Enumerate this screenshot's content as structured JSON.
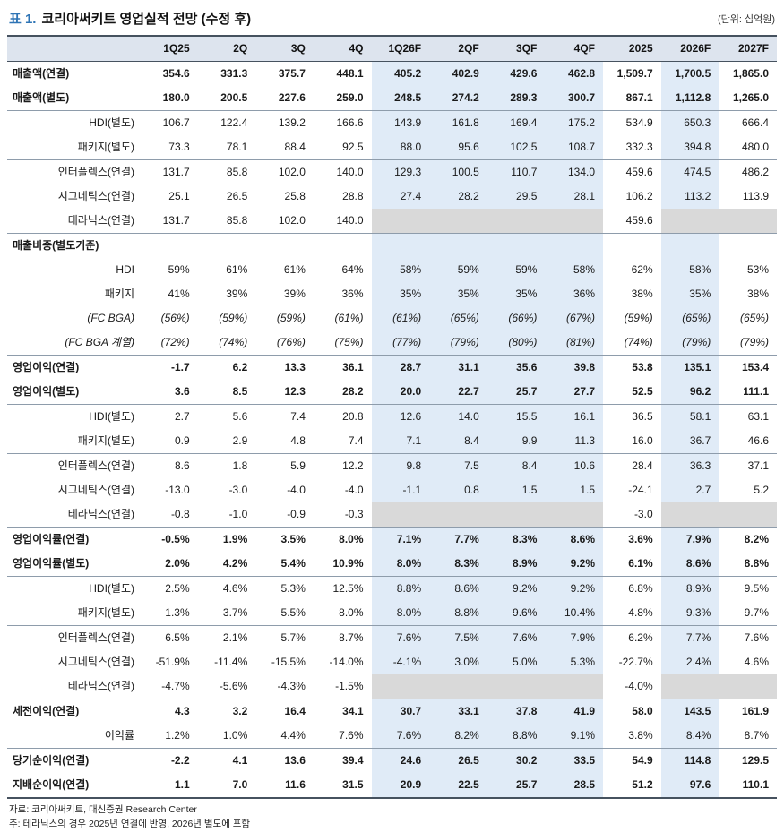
{
  "header": {
    "table_label": "표 1.",
    "title": "코리아써키트 영업실적 전망 (수정 후)",
    "unit": "(단위: 십억원)"
  },
  "colors": {
    "accent_blue": "#2e74b5",
    "header_bg": "#dde4ee",
    "forecast_bg": "#e0ebf7",
    "empty_cell_bg": "#d9d9d9",
    "rule_dark": "#46525f",
    "rule_light": "#8e9cab"
  },
  "table": {
    "columns": [
      "1Q25",
      "2Q",
      "3Q",
      "4Q",
      "1Q26F",
      "2QF",
      "3QF",
      "4QF",
      "2025",
      "2026F",
      "2027F"
    ],
    "highlight_columns": [
      4,
      5,
      6,
      7,
      9
    ],
    "rows": [
      {
        "label": "매출액(연결)",
        "style": "bold",
        "values": [
          "354.6",
          "331.3",
          "375.7",
          "448.1",
          "405.2",
          "402.9",
          "429.6",
          "462.8",
          "1,509.7",
          "1,700.5",
          "1,865.0"
        ]
      },
      {
        "label": "매출액(별도)",
        "style": "bold",
        "values": [
          "180.0",
          "200.5",
          "227.6",
          "259.0",
          "248.5",
          "274.2",
          "289.3",
          "300.7",
          "867.1",
          "1,112.8",
          "1,265.0"
        ]
      },
      {
        "label": "HDI(별도)",
        "style": "sub",
        "sep": true,
        "values": [
          "106.7",
          "122.4",
          "139.2",
          "166.6",
          "143.9",
          "161.8",
          "169.4",
          "175.2",
          "534.9",
          "650.3",
          "666.4"
        ]
      },
      {
        "label": "패키지(별도)",
        "style": "sub",
        "values": [
          "73.3",
          "78.1",
          "88.4",
          "92.5",
          "88.0",
          "95.6",
          "102.5",
          "108.7",
          "332.3",
          "394.8",
          "480.0"
        ]
      },
      {
        "label": "인터플렉스(연결)",
        "style": "sub",
        "sep": true,
        "values": [
          "131.7",
          "85.8",
          "102.0",
          "140.0",
          "129.3",
          "100.5",
          "110.7",
          "134.0",
          "459.6",
          "474.5",
          "486.2"
        ]
      },
      {
        "label": "시그네틱스(연결)",
        "style": "sub",
        "values": [
          "25.1",
          "26.5",
          "25.8",
          "28.8",
          "27.4",
          "28.2",
          "29.5",
          "28.1",
          "106.2",
          "113.2",
          "113.9"
        ]
      },
      {
        "label": "테라닉스(연결)",
        "style": "sub",
        "values": [
          "131.7",
          "85.8",
          "102.0",
          "140.0",
          null,
          null,
          null,
          null,
          "459.6",
          null,
          null
        ]
      },
      {
        "label": "매출비중(별도기준)",
        "style": "bold",
        "sep": true,
        "values": [
          "",
          "",
          "",
          "",
          "",
          "",
          "",
          "",
          "",
          "",
          ""
        ]
      },
      {
        "label": "HDI",
        "style": "sub",
        "values": [
          "59%",
          "61%",
          "61%",
          "64%",
          "58%",
          "59%",
          "59%",
          "58%",
          "62%",
          "58%",
          "53%"
        ]
      },
      {
        "label": "패키지",
        "style": "sub",
        "values": [
          "41%",
          "39%",
          "39%",
          "36%",
          "35%",
          "35%",
          "35%",
          "36%",
          "38%",
          "35%",
          "38%"
        ]
      },
      {
        "label": "(FC BGA)",
        "style": "sub",
        "italic": true,
        "values": [
          "(56%)",
          "(59%)",
          "(59%)",
          "(61%)",
          "(61%)",
          "(65%)",
          "(66%)",
          "(67%)",
          "(59%)",
          "(65%)",
          "(65%)"
        ]
      },
      {
        "label": "(FC BGA 계열)",
        "style": "sub",
        "italic": true,
        "values": [
          "(72%)",
          "(74%)",
          "(76%)",
          "(75%)",
          "(77%)",
          "(79%)",
          "(80%)",
          "(81%)",
          "(74%)",
          "(79%)",
          "(79%)"
        ]
      },
      {
        "label": "영업이익(연결)",
        "style": "bold",
        "sep": true,
        "values": [
          "-1.7",
          "6.2",
          "13.3",
          "36.1",
          "28.7",
          "31.1",
          "35.6",
          "39.8",
          "53.8",
          "135.1",
          "153.4"
        ]
      },
      {
        "label": "영업이익(별도)",
        "style": "bold",
        "values": [
          "3.6",
          "8.5",
          "12.3",
          "28.2",
          "20.0",
          "22.7",
          "25.7",
          "27.7",
          "52.5",
          "96.2",
          "111.1"
        ]
      },
      {
        "label": "HDI(별도)",
        "style": "sub",
        "sep": true,
        "values": [
          "2.7",
          "5.6",
          "7.4",
          "20.8",
          "12.6",
          "14.0",
          "15.5",
          "16.1",
          "36.5",
          "58.1",
          "63.1"
        ]
      },
      {
        "label": "패키지(별도)",
        "style": "sub",
        "values": [
          "0.9",
          "2.9",
          "4.8",
          "7.4",
          "7.1",
          "8.4",
          "9.9",
          "11.3",
          "16.0",
          "36.7",
          "46.6"
        ]
      },
      {
        "label": "인터플렉스(연결)",
        "style": "sub",
        "sep": true,
        "values": [
          "8.6",
          "1.8",
          "5.9",
          "12.2",
          "9.8",
          "7.5",
          "8.4",
          "10.6",
          "28.4",
          "36.3",
          "37.1"
        ]
      },
      {
        "label": "시그네틱스(연결)",
        "style": "sub",
        "values": [
          "-13.0",
          "-3.0",
          "-4.0",
          "-4.0",
          "-1.1",
          "0.8",
          "1.5",
          "1.5",
          "-24.1",
          "2.7",
          "5.2"
        ]
      },
      {
        "label": "테라닉스(연결)",
        "style": "sub",
        "values": [
          "-0.8",
          "-1.0",
          "-0.9",
          "-0.3",
          null,
          null,
          null,
          null,
          "-3.0",
          null,
          null
        ]
      },
      {
        "label": "영업이익률(연결)",
        "style": "bold",
        "sep": true,
        "values": [
          "-0.5%",
          "1.9%",
          "3.5%",
          "8.0%",
          "7.1%",
          "7.7%",
          "8.3%",
          "8.6%",
          "3.6%",
          "7.9%",
          "8.2%"
        ]
      },
      {
        "label": "영업이익률(별도)",
        "style": "bold",
        "values": [
          "2.0%",
          "4.2%",
          "5.4%",
          "10.9%",
          "8.0%",
          "8.3%",
          "8.9%",
          "9.2%",
          "6.1%",
          "8.6%",
          "8.8%"
        ]
      },
      {
        "label": "HDI(별도)",
        "style": "sub",
        "sep": true,
        "values": [
          "2.5%",
          "4.6%",
          "5.3%",
          "12.5%",
          "8.8%",
          "8.6%",
          "9.2%",
          "9.2%",
          "6.8%",
          "8.9%",
          "9.5%"
        ]
      },
      {
        "label": "패키지(별도)",
        "style": "sub",
        "values": [
          "1.3%",
          "3.7%",
          "5.5%",
          "8.0%",
          "8.0%",
          "8.8%",
          "9.6%",
          "10.4%",
          "4.8%",
          "9.3%",
          "9.7%"
        ]
      },
      {
        "label": "인터플렉스(연결)",
        "style": "sub",
        "sep": true,
        "values": [
          "6.5%",
          "2.1%",
          "5.7%",
          "8.7%",
          "7.6%",
          "7.5%",
          "7.6%",
          "7.9%",
          "6.2%",
          "7.7%",
          "7.6%"
        ]
      },
      {
        "label": "시그네틱스(연결)",
        "style": "sub",
        "values": [
          "-51.9%",
          "-11.4%",
          "-15.5%",
          "-14.0%",
          "-4.1%",
          "3.0%",
          "5.0%",
          "5.3%",
          "-22.7%",
          "2.4%",
          "4.6%"
        ]
      },
      {
        "label": "테라닉스(연결)",
        "style": "sub",
        "values": [
          "-4.7%",
          "-5.6%",
          "-4.3%",
          "-1.5%",
          null,
          null,
          null,
          null,
          "-4.0%",
          null,
          null
        ]
      },
      {
        "label": "세전이익(연결)",
        "style": "bold",
        "sep": true,
        "values": [
          "4.3",
          "3.2",
          "16.4",
          "34.1",
          "30.7",
          "33.1",
          "37.8",
          "41.9",
          "58.0",
          "143.5",
          "161.9"
        ]
      },
      {
        "label": "이익률",
        "style": "sub",
        "values": [
          "1.2%",
          "1.0%",
          "4.4%",
          "7.6%",
          "7.6%",
          "8.2%",
          "8.8%",
          "9.1%",
          "3.8%",
          "8.4%",
          "8.7%"
        ]
      },
      {
        "label": "당기순이익(연결)",
        "style": "bold",
        "sep": true,
        "values": [
          "-2.2",
          "4.1",
          "13.6",
          "39.4",
          "24.6",
          "26.5",
          "30.2",
          "33.5",
          "54.9",
          "114.8",
          "129.5"
        ]
      },
      {
        "label": "지배순이익(연결)",
        "style": "bold",
        "values": [
          "1.1",
          "7.0",
          "11.6",
          "31.5",
          "20.9",
          "22.5",
          "25.7",
          "28.5",
          "51.2",
          "97.6",
          "110.1"
        ]
      }
    ]
  },
  "footnotes": {
    "source": "자료: 코리아써키트, 대신증권 Research Center",
    "note": "주: 테라닉스의 경우 2025년 연결에 반영, 2026년 별도에 포함"
  }
}
